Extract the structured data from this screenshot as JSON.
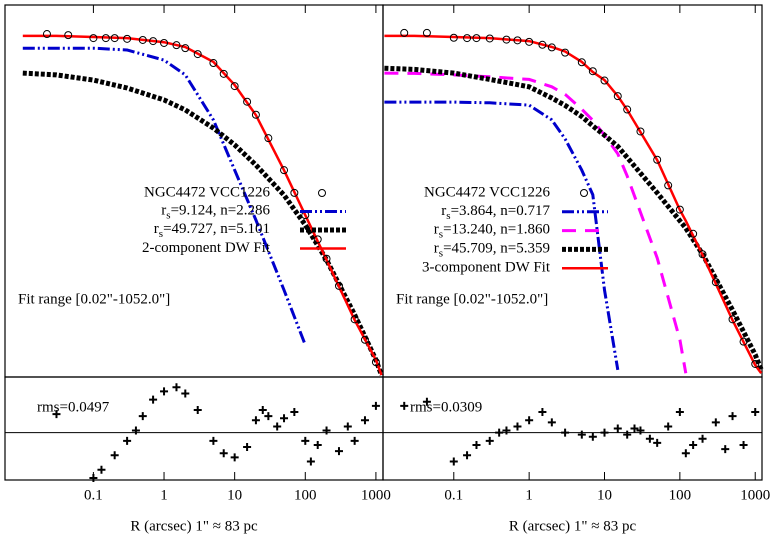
{
  "chart_data": [
    {
      "type": "line",
      "xscale": "log",
      "xlim": [
        0.0056,
        1260
      ],
      "ylim": [
        0,
        10
      ],
      "x": [
        0.01,
        0.03,
        0.1,
        0.3,
        1,
        2,
        5,
        10,
        20,
        50,
        100,
        200,
        500,
        1000,
        1200
      ],
      "points": {
        "name": "NGC4472 VCC1226",
        "color": "#000000",
        "x": [
          0.022,
          0.044,
          0.1,
          0.15,
          0.2,
          0.3,
          0.5,
          0.7,
          1,
          1.5,
          2,
          3,
          5,
          7,
          10,
          15,
          20,
          30,
          50,
          70,
          100,
          150,
          200,
          300,
          500,
          700,
          1000
        ],
        "values": [
          9.22,
          9.19,
          9.11,
          9.11,
          9.11,
          9.09,
          9.06,
          9.03,
          8.98,
          8.92,
          8.84,
          8.68,
          8.44,
          8.15,
          7.82,
          7.4,
          7.05,
          6.42,
          5.56,
          4.95,
          4.35,
          3.7,
          3.18,
          2.45,
          1.55,
          1.0,
          0.4
        ]
      },
      "series": [
        {
          "name": "rs=9.124, n=2.286",
          "color": "#0000cc",
          "dash": "dash-dot-dot",
          "values": [
            8.84,
            8.84,
            8.84,
            8.79,
            8.52,
            8.12,
            6.91,
            5.56,
            4.22,
            2.34,
            0.86,
            null,
            null,
            null,
            null
          ]
        },
        {
          "name": "rs=49.727, n=5.101",
          "color": "#000000",
          "dash": "dotted",
          "values": [
            8.17,
            8.12,
            7.98,
            7.77,
            7.45,
            7.18,
            6.69,
            6.24,
            5.7,
            4.89,
            4.09,
            3.15,
            1.67,
            0.46,
            0.05
          ]
        },
        {
          "name": "2-component DW Fit",
          "color": "#ff0000",
          "dash": "solid",
          "values": [
            9.17,
            9.17,
            9.14,
            9.11,
            9.0,
            8.87,
            8.47,
            7.85,
            7.04,
            5.56,
            4.35,
            3.15,
            1.53,
            0.46,
            0.05
          ]
        }
      ],
      "annotation": "Fit range [0.02\"-1052.0\"]"
    },
    {
      "type": "scatter",
      "xscale": "log",
      "xlim": [
        0.0056,
        1260
      ],
      "ylim": [
        -0.23,
        0.27
      ],
      "x": [
        0.03,
        0.1,
        0.13,
        0.2,
        0.3,
        0.4,
        0.5,
        0.7,
        1,
        1.5,
        2,
        3,
        5,
        7,
        10,
        15,
        20,
        25,
        30,
        40,
        50,
        70,
        100,
        120,
        150,
        200,
        300,
        400,
        500,
        700,
        1000
      ],
      "values": [
        0.09,
        -0.22,
        -0.18,
        -0.11,
        -0.04,
        0.01,
        0.08,
        0.16,
        0.2,
        0.22,
        0.19,
        0.11,
        -0.04,
        -0.1,
        -0.12,
        -0.07,
        0.06,
        0.11,
        0.08,
        0.03,
        0.07,
        0.1,
        -0.04,
        -0.14,
        -0.06,
        0.01,
        -0.09,
        0.03,
        -0.04,
        0.06,
        0.13
      ],
      "annotation": "rms=0.0497",
      "xticks": [
        0.1,
        1,
        10,
        100,
        1000
      ],
      "xlabel": "R (arcsec)  1\" ≈  83 pc"
    },
    {
      "type": "line",
      "xscale": "log",
      "xlim": [
        0.0115,
        1230
      ],
      "ylim": [
        0,
        10
      ],
      "x": [
        0.012,
        0.03,
        0.1,
        0.3,
        1,
        2,
        3,
        5,
        7,
        10,
        15,
        20,
        50,
        100,
        120,
        200,
        500,
        1000,
        1200
      ],
      "points": {
        "name": "NGC4472 VCC1226",
        "color": "#000000",
        "x": [
          0.022,
          0.044,
          0.1,
          0.15,
          0.2,
          0.3,
          0.5,
          0.7,
          1,
          1.5,
          2,
          3,
          5,
          7,
          10,
          15,
          20,
          30,
          50,
          70,
          100,
          150,
          200,
          300,
          500,
          700,
          1000
        ],
        "values": [
          9.25,
          9.25,
          9.12,
          9.11,
          9.11,
          9.1,
          9.07,
          9.05,
          9.01,
          8.93,
          8.86,
          8.72,
          8.46,
          8.22,
          7.97,
          7.55,
          7.19,
          6.6,
          5.84,
          5.15,
          4.5,
          3.85,
          3.3,
          2.55,
          1.55,
          0.95,
          0.35
        ]
      },
      "series": [
        {
          "name": "rs=3.864, n=0.717",
          "color": "#0000cc",
          "dash": "dash-dot-dot",
          "values": [
            7.39,
            7.39,
            7.39,
            7.37,
            7.31,
            6.91,
            6.4,
            5.56,
            4.9,
            2.34,
            0.19,
            null,
            null,
            null,
            null,
            null,
            null,
            null,
            null
          ]
        },
        {
          "name": "rs=13.240, n=1.860",
          "color": "#ff00ff",
          "dash": "dashed",
          "values": [
            8.17,
            8.16,
            8.12,
            8.07,
            8.0,
            7.8,
            7.6,
            7.2,
            6.9,
            6.5,
            6.0,
            5.4,
            3.2,
            1.0,
            0.1,
            null,
            null,
            null,
            null
          ]
        },
        {
          "name": "rs=45.709, n=5.359",
          "color": "#000000",
          "dash": "dotted",
          "values": [
            8.3,
            8.27,
            8.17,
            8.0,
            7.8,
            7.5,
            7.3,
            7.0,
            6.75,
            6.5,
            6.2,
            5.9,
            4.95,
            4.2,
            4.0,
            3.3,
            1.8,
            0.6,
            0.2
          ]
        },
        {
          "name": "3-component DW Fit",
          "color": "#ff0000",
          "dash": "solid",
          "values": [
            9.17,
            9.17,
            9.14,
            9.11,
            9.03,
            8.87,
            8.75,
            8.47,
            8.2,
            7.98,
            7.55,
            7.18,
            5.83,
            4.49,
            4.2,
            3.28,
            1.53,
            0.32,
            0.1
          ]
        }
      ],
      "annotation": "Fit range [0.02\"-1052.0\"]"
    },
    {
      "type": "scatter",
      "xscale": "log",
      "xlim": [
        0.0115,
        1230
      ],
      "ylim": [
        -0.23,
        0.27
      ],
      "x": [
        0.022,
        0.044,
        0.1,
        0.15,
        0.2,
        0.3,
        0.4,
        0.5,
        0.7,
        1,
        1.5,
        2,
        3,
        5,
        7,
        10,
        15,
        20,
        25,
        30,
        40,
        50,
        70,
        100,
        120,
        150,
        200,
        300,
        400,
        500,
        700,
        1000
      ],
      "values": [
        0.13,
        0.15,
        -0.14,
        -0.11,
        -0.06,
        -0.04,
        0.0,
        0.01,
        0.03,
        0.06,
        0.1,
        0.05,
        0.0,
        -0.01,
        -0.02,
        0.0,
        0.02,
        -0.01,
        0.02,
        0.01,
        -0.03,
        -0.05,
        0.03,
        0.1,
        -0.1,
        -0.06,
        -0.03,
        0.05,
        -0.08,
        0.08,
        -0.06,
        0.1
      ],
      "annotation": "rms=0.0309",
      "xticks": [
        0.1,
        1,
        10,
        100,
        1000
      ],
      "xlabel": "R (arcsec)  1\" ≈  83 pc"
    }
  ]
}
